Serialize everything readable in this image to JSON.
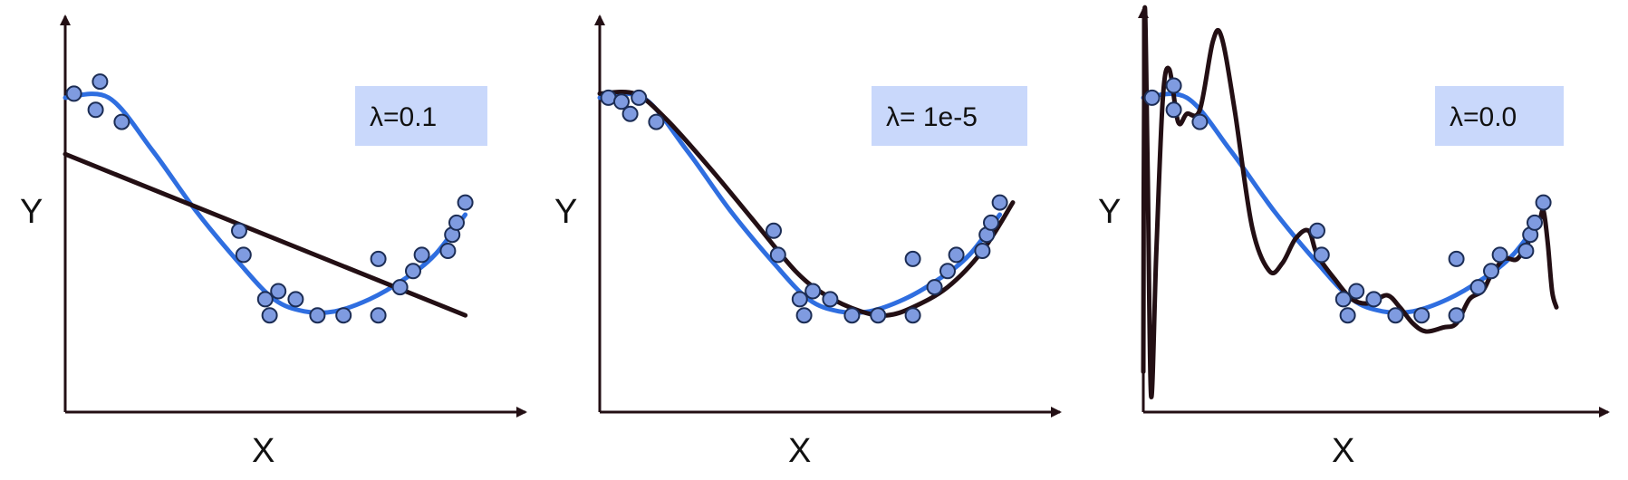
{
  "colors": {
    "points_fill": "#7f9be0",
    "points_stroke": "#1c2d55",
    "true_curve": "#2f6ee0",
    "fit_curve": "#230f14",
    "axis": "#230f14",
    "label_box": "#c9d8fb"
  },
  "chart_data": [
    {
      "type": "scatter",
      "panel": "left",
      "xlabel": "X",
      "ylabel": "Y",
      "annotation": "λ=0.1",
      "x_range": [
        0,
        1
      ],
      "y_range": [
        0,
        1
      ],
      "points": [
        [
          0.02,
          0.79
        ],
        [
          0.08,
          0.82
        ],
        [
          0.07,
          0.75
        ],
        [
          0.13,
          0.72
        ],
        [
          0.4,
          0.45
        ],
        [
          0.41,
          0.39
        ],
        [
          0.49,
          0.3
        ],
        [
          0.46,
          0.28
        ],
        [
          0.53,
          0.28
        ],
        [
          0.47,
          0.24
        ],
        [
          0.58,
          0.24
        ],
        [
          0.64,
          0.24
        ],
        [
          0.72,
          0.24
        ],
        [
          0.72,
          0.38
        ],
        [
          0.77,
          0.31
        ],
        [
          0.8,
          0.35
        ],
        [
          0.82,
          0.39
        ],
        [
          0.88,
          0.4
        ],
        [
          0.89,
          0.44
        ],
        [
          0.9,
          0.47
        ],
        [
          0.92,
          0.52
        ]
      ],
      "true_curve": [
        [
          0.0,
          0.78
        ],
        [
          0.1,
          0.78
        ],
        [
          0.2,
          0.65
        ],
        [
          0.3,
          0.5
        ],
        [
          0.4,
          0.37
        ],
        [
          0.48,
          0.28
        ],
        [
          0.55,
          0.25
        ],
        [
          0.62,
          0.25
        ],
        [
          0.7,
          0.28
        ],
        [
          0.78,
          0.33
        ],
        [
          0.85,
          0.39
        ],
        [
          0.92,
          0.49
        ]
      ],
      "fit_curve": [
        [
          0.0,
          0.64
        ],
        [
          0.92,
          0.24
        ]
      ]
    },
    {
      "type": "scatter",
      "panel": "middle",
      "xlabel": "X",
      "ylabel": "Y",
      "annotation": "λ= 1e-5",
      "x_range": [
        0,
        1
      ],
      "y_range": [
        0,
        1
      ],
      "points": [
        [
          0.02,
          0.78
        ],
        [
          0.05,
          0.77
        ],
        [
          0.07,
          0.74
        ],
        [
          0.09,
          0.78
        ],
        [
          0.13,
          0.72
        ],
        [
          0.4,
          0.45
        ],
        [
          0.41,
          0.39
        ],
        [
          0.49,
          0.3
        ],
        [
          0.46,
          0.28
        ],
        [
          0.53,
          0.28
        ],
        [
          0.47,
          0.24
        ],
        [
          0.58,
          0.24
        ],
        [
          0.64,
          0.24
        ],
        [
          0.72,
          0.24
        ],
        [
          0.72,
          0.38
        ],
        [
          0.77,
          0.31
        ],
        [
          0.8,
          0.35
        ],
        [
          0.82,
          0.39
        ],
        [
          0.88,
          0.4
        ],
        [
          0.89,
          0.44
        ],
        [
          0.9,
          0.47
        ],
        [
          0.92,
          0.52
        ]
      ],
      "true_curve": [
        [
          0.0,
          0.78
        ],
        [
          0.1,
          0.78
        ],
        [
          0.2,
          0.65
        ],
        [
          0.3,
          0.5
        ],
        [
          0.4,
          0.37
        ],
        [
          0.48,
          0.28
        ],
        [
          0.55,
          0.25
        ],
        [
          0.62,
          0.25
        ],
        [
          0.7,
          0.28
        ],
        [
          0.78,
          0.33
        ],
        [
          0.85,
          0.39
        ],
        [
          0.92,
          0.49
        ]
      ],
      "fit_curve": [
        [
          0.0,
          0.79
        ],
        [
          0.08,
          0.79
        ],
        [
          0.15,
          0.73
        ],
        [
          0.25,
          0.61
        ],
        [
          0.35,
          0.48
        ],
        [
          0.45,
          0.35
        ],
        [
          0.52,
          0.29
        ],
        [
          0.6,
          0.25
        ],
        [
          0.66,
          0.24
        ],
        [
          0.72,
          0.26
        ],
        [
          0.8,
          0.31
        ],
        [
          0.88,
          0.4
        ],
        [
          0.95,
          0.52
        ]
      ]
    },
    {
      "type": "scatter",
      "panel": "right",
      "xlabel": "X",
      "ylabel": "Y",
      "annotation": "λ=0.0",
      "x_range": [
        0,
        1
      ],
      "y_range": [
        0,
        1
      ],
      "points": [
        [
          0.02,
          0.78
        ],
        [
          0.07,
          0.81
        ],
        [
          0.07,
          0.75
        ],
        [
          0.13,
          0.72
        ],
        [
          0.4,
          0.45
        ],
        [
          0.41,
          0.39
        ],
        [
          0.49,
          0.3
        ],
        [
          0.46,
          0.28
        ],
        [
          0.53,
          0.28
        ],
        [
          0.47,
          0.24
        ],
        [
          0.58,
          0.24
        ],
        [
          0.64,
          0.24
        ],
        [
          0.72,
          0.24
        ],
        [
          0.72,
          0.38
        ],
        [
          0.77,
          0.31
        ],
        [
          0.8,
          0.35
        ],
        [
          0.82,
          0.39
        ],
        [
          0.88,
          0.4
        ],
        [
          0.89,
          0.44
        ],
        [
          0.9,
          0.47
        ],
        [
          0.92,
          0.52
        ]
      ],
      "true_curve": [
        [
          0.0,
          0.78
        ],
        [
          0.1,
          0.78
        ],
        [
          0.2,
          0.65
        ],
        [
          0.3,
          0.5
        ],
        [
          0.4,
          0.37
        ],
        [
          0.48,
          0.28
        ],
        [
          0.55,
          0.25
        ],
        [
          0.62,
          0.25
        ],
        [
          0.7,
          0.28
        ],
        [
          0.78,
          0.33
        ],
        [
          0.85,
          0.39
        ],
        [
          0.92,
          0.49
        ]
      ],
      "fit_curve": [
        [
          0.0,
          0.1
        ],
        [
          0.003,
          0.99
        ],
        [
          0.01,
          0.6
        ],
        [
          0.018,
          0.04
        ],
        [
          0.03,
          0.4
        ],
        [
          0.045,
          0.78
        ],
        [
          0.06,
          0.85
        ],
        [
          0.08,
          0.72
        ],
        [
          0.1,
          0.74
        ],
        [
          0.13,
          0.75
        ],
        [
          0.16,
          0.92
        ],
        [
          0.18,
          0.93
        ],
        [
          0.21,
          0.75
        ],
        [
          0.25,
          0.46
        ],
        [
          0.29,
          0.35
        ],
        [
          0.32,
          0.37
        ],
        [
          0.35,
          0.43
        ],
        [
          0.38,
          0.45
        ],
        [
          0.4,
          0.39
        ],
        [
          0.44,
          0.33
        ],
        [
          0.48,
          0.28
        ],
        [
          0.52,
          0.27
        ],
        [
          0.56,
          0.29
        ],
        [
          0.59,
          0.26
        ],
        [
          0.62,
          0.22
        ],
        [
          0.65,
          0.2
        ],
        [
          0.69,
          0.21
        ],
        [
          0.72,
          0.22
        ],
        [
          0.75,
          0.28
        ],
        [
          0.78,
          0.3
        ],
        [
          0.8,
          0.34
        ],
        [
          0.83,
          0.38
        ],
        [
          0.86,
          0.38
        ],
        [
          0.89,
          0.43
        ],
        [
          0.91,
          0.47
        ],
        [
          0.92,
          0.5
        ],
        [
          0.93,
          0.42
        ],
        [
          0.94,
          0.3
        ],
        [
          0.95,
          0.26
        ]
      ]
    }
  ]
}
